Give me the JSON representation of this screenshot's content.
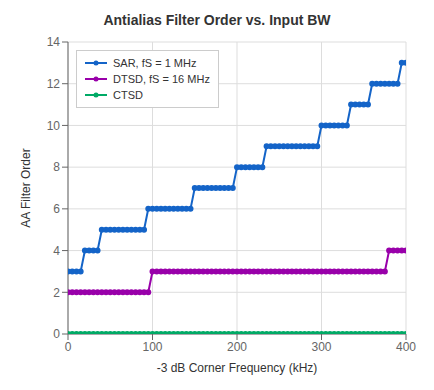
{
  "chart_data": {
    "type": "line",
    "title": "Antialias Filter Order vs. Input BW",
    "x_label": "-3 dB Corner Frequency (kHz)",
    "y_label": "AA Filter Order",
    "xlim": [
      0,
      400
    ],
    "ylim": [
      0,
      14
    ],
    "xticks": [
      0,
      100,
      200,
      300,
      400
    ],
    "yticks": [
      0,
      2,
      4,
      6,
      8,
      10,
      12,
      14
    ],
    "grid": true,
    "legend": "upper left",
    "x": [
      0,
      5,
      10,
      15,
      20,
      25,
      30,
      35,
      40,
      45,
      50,
      55,
      60,
      65,
      70,
      75,
      80,
      85,
      90,
      95,
      100,
      105,
      110,
      115,
      120,
      125,
      130,
      135,
      140,
      145,
      150,
      155,
      160,
      165,
      170,
      175,
      180,
      185,
      190,
      195,
      200,
      205,
      210,
      215,
      220,
      225,
      230,
      235,
      240,
      245,
      250,
      255,
      260,
      265,
      270,
      275,
      280,
      285,
      290,
      295,
      300,
      305,
      310,
      315,
      320,
      325,
      330,
      335,
      340,
      345,
      350,
      355,
      360,
      365,
      370,
      375,
      380,
      385,
      390,
      395,
      400
    ],
    "series": [
      {
        "name": "SAR, fS = 1 MHz",
        "color": "#1464c8",
        "marker": "circle",
        "line_style": "solid",
        "values": [
          3,
          3,
          3,
          3,
          4,
          4,
          4,
          4,
          5,
          5,
          5,
          5,
          5,
          5,
          5,
          5,
          5,
          5,
          5,
          6,
          6,
          6,
          6,
          6,
          6,
          6,
          6,
          6,
          6,
          6,
          7,
          7,
          7,
          7,
          7,
          7,
          7,
          7,
          7,
          7,
          8,
          8,
          8,
          8,
          8,
          8,
          8,
          9,
          9,
          9,
          9,
          9,
          9,
          9,
          9,
          9,
          9,
          9,
          9,
          9,
          10,
          10,
          10,
          10,
          10,
          10,
          10,
          11,
          11,
          11,
          11,
          11,
          12,
          12,
          12,
          12,
          12,
          12,
          12,
          13,
          13
        ]
      },
      {
        "name": "DTSD, fS = 16 MHz",
        "color": "#9900aa",
        "marker": "circle",
        "line_style": "solid",
        "values": [
          2,
          2,
          2,
          2,
          2,
          2,
          2,
          2,
          2,
          2,
          2,
          2,
          2,
          2,
          2,
          2,
          2,
          2,
          2,
          2,
          3,
          3,
          3,
          3,
          3,
          3,
          3,
          3,
          3,
          3,
          3,
          3,
          3,
          3,
          3,
          3,
          3,
          3,
          3,
          3,
          3,
          3,
          3,
          3,
          3,
          3,
          3,
          3,
          3,
          3,
          3,
          3,
          3,
          3,
          3,
          3,
          3,
          3,
          3,
          3,
          3,
          3,
          3,
          3,
          3,
          3,
          3,
          3,
          3,
          3,
          3,
          3,
          3,
          3,
          3,
          3,
          4,
          4,
          4,
          4,
          4
        ]
      },
      {
        "name": "CTSD",
        "color": "#00aa66",
        "marker": "circle",
        "line_style": "solid",
        "values": [
          0,
          0,
          0,
          0,
          0,
          0,
          0,
          0,
          0,
          0,
          0,
          0,
          0,
          0,
          0,
          0,
          0,
          0,
          0,
          0,
          0,
          0,
          0,
          0,
          0,
          0,
          0,
          0,
          0,
          0,
          0,
          0,
          0,
          0,
          0,
          0,
          0,
          0,
          0,
          0,
          0,
          0,
          0,
          0,
          0,
          0,
          0,
          0,
          0,
          0,
          0,
          0,
          0,
          0,
          0,
          0,
          0,
          0,
          0,
          0,
          0,
          0,
          0,
          0,
          0,
          0,
          0,
          0,
          0,
          0,
          0,
          0,
          0,
          0,
          0,
          0,
          0,
          0,
          0,
          0,
          0
        ]
      }
    ]
  }
}
